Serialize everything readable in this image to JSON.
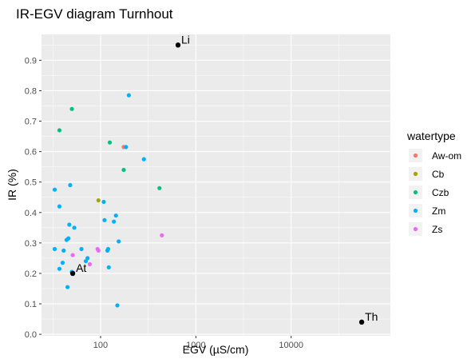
{
  "chart_data": {
    "type": "scatter",
    "title": "IR-EGV diagram Turnhout",
    "xlabel": "EGV (µS/cm)",
    "ylabel": "IR (%)",
    "x_scale": "log10",
    "xlim": [
      24,
      110000
    ],
    "ylim": [
      -0.005,
      0.985
    ],
    "x_ticks": [
      100,
      1000,
      10000
    ],
    "x_tick_labels": [
      "100",
      "1000",
      "10000"
    ],
    "y_ticks": [
      0.0,
      0.1,
      0.2,
      0.3,
      0.4,
      0.5,
      0.6,
      0.7,
      0.8,
      0.9
    ],
    "y_tick_labels": [
      "0.0",
      "0.1",
      "0.2",
      "0.3",
      "0.4",
      "0.5",
      "0.6",
      "0.7",
      "0.8",
      "0.9"
    ],
    "grid": true,
    "legend": {
      "title": "watertype",
      "position": "right"
    },
    "series": [
      {
        "name": "Aw-om",
        "color": "#F8766D",
        "points": [
          [
            175,
            0.615
          ]
        ]
      },
      {
        "name": "Cb",
        "color": "#A3A500",
        "points": [
          [
            95,
            0.44
          ]
        ]
      },
      {
        "name": "Czb",
        "color": "#00BF7D",
        "points": [
          [
            37,
            0.67
          ],
          [
            50,
            0.74
          ],
          [
            125,
            0.63
          ],
          [
            175,
            0.54
          ],
          [
            415,
            0.48
          ]
        ]
      },
      {
        "name": "Zm",
        "color": "#00B0F6",
        "points": [
          [
            33,
            0.475
          ],
          [
            37,
            0.42
          ],
          [
            48,
            0.49
          ],
          [
            53,
            0.35
          ],
          [
            47,
            0.36
          ],
          [
            44,
            0.31
          ],
          [
            46,
            0.315
          ],
          [
            33,
            0.28
          ],
          [
            41,
            0.275
          ],
          [
            40,
            0.235
          ],
          [
            37,
            0.215
          ],
          [
            50,
            0.205
          ],
          [
            45,
            0.155
          ],
          [
            63,
            0.28
          ],
          [
            70,
            0.24
          ],
          [
            73,
            0.25
          ],
          [
            108,
            0.435
          ],
          [
            110,
            0.375
          ],
          [
            145,
            0.39
          ],
          [
            138,
            0.37
          ],
          [
            155,
            0.305
          ],
          [
            118,
            0.275
          ],
          [
            120,
            0.28
          ],
          [
            122,
            0.22
          ],
          [
            150,
            0.095
          ],
          [
            185,
            0.615
          ],
          [
            198,
            0.785
          ],
          [
            285,
            0.575
          ]
        ]
      },
      {
        "name": "Zs",
        "color": "#E76BF3",
        "points": [
          [
            51,
            0.26
          ],
          [
            77,
            0.23
          ],
          [
            93,
            0.28
          ],
          [
            95,
            0.275
          ],
          [
            440,
            0.325
          ]
        ]
      }
    ],
    "annotations": [
      {
        "label": "Li",
        "x": 650,
        "y": 0.95,
        "color": "#000000"
      },
      {
        "label": "At",
        "x": 51,
        "y": 0.2,
        "color": "#000000"
      },
      {
        "label": "Th",
        "x": 55000,
        "y": 0.04,
        "color": "#000000"
      }
    ]
  }
}
